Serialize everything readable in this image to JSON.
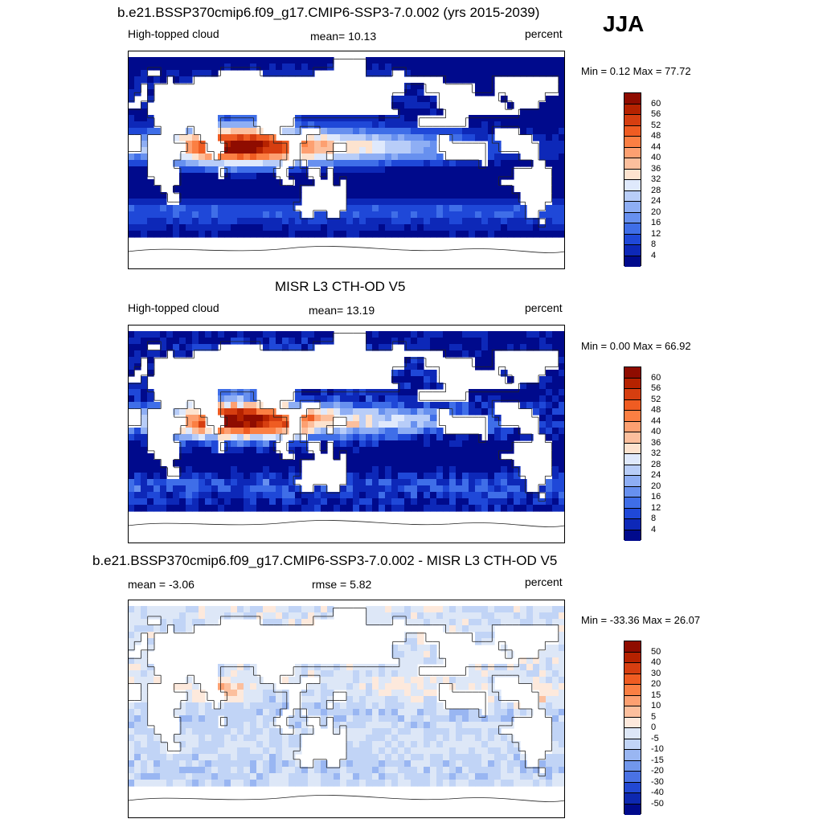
{
  "season": "JJA",
  "land_mask": [
    "..................................................................",
    "...............................#####..............................",
    "...##.........######........########....##........................",
    "......#...######################################.......##########.",
    "..#.######################################...#######...##########.",
    ".##.####################################.......#########.######...",
    "##.#####################################.......##########.####....",
    "...######################################.......###########.......",
    "....##########.....######...................#######...............",
    ".....####.####......###...###..........................####.......",
    "##.####....###........#####....................##......######.....",
    "##.######...###.........##.....##..............#######..######....",
    "...#####.....#..........##....#.................######.....###....",
    "...####................##.#..........................#.......##...",
    "...#####......#.......##...##.#...........................######..",
    "....####...............##...###.#.......................########..",
    ".....##...................#######.........................######..",
    "......##..................#######..........................#####..",
    ".........................########...........................###...",
    "..........................##..##............................##....",
    "..............................................................#...",
    "..................................................................",
    "..................................................................",
    "..................................................................",
    "..................................................................",
    ".................................................................."
  ],
  "panels": [
    {
      "title": "b.e21.BSSP370cmip6.f09_g17.CMIP6-SSP3-7.0.002 (yrs 2015-2039)",
      "left_label": "High-topped cloud",
      "center_label": "mean=  10.13",
      "right_label": "percent",
      "minmax": "Min =   0.12 Max =  77.72",
      "colorbar": {
        "labels": [
          "60",
          "56",
          "52",
          "48",
          "44",
          "40",
          "36",
          "32",
          "28",
          "24",
          "20",
          "16",
          "12",
          "8",
          "4"
        ],
        "colors": [
          "#8f0c00",
          "#b52200",
          "#d63e10",
          "#ef5c22",
          "#fb7f43",
          "#fda071",
          "#fcbf9d",
          "#fde3cf",
          "#dfe9fc",
          "#b8cdf8",
          "#8eaef4",
          "#6790ef",
          "#3f6ee8",
          "#1f48d8",
          "#0d28b8",
          "#000a8c"
        ]
      },
      "map": [
        "##############################################################################",
        "##............###########...##...###..###############........##.......#######",
        "#................######......#.....###..########.....##.........###..##....##",
        "...............#########...........#..#.##########...##....#####.###......###",
        "#...............##.#######........##...############.#.......#######...#.....#",
        "##....#.........#...#.###.##.#...###...############...........##.###.....####",
        "#....##.....##.#....##..........##.#..#...##.####.####...#.....##.#.##.....##",
        "##.....##.####..##..##..#.###..##..######..##..#####...#....#..####....#.....",
        "#.##...####.###..##...###.###.##..#.#...##..##.#.#.........###..#.##.....####",
        "....#..##.##.##.###....###.#..##.#.#.#...#.###...##......#...#.......#...#..#",
        "###..##.#..##.#.....####...#.#.##...###..#..#.####...#.##......#....#..#..##.",
        "#...###.....#.##......#.#....##.##.......#...##..##.#.#####.##.#.##..####...#",
        "...##..........#.#..#####.#..####....####.##.#.##..#..######.#####.##.#.##.##",
        "#..##..##.#....#.#.###..###.#####.##....#####...#..#.......#.#.##...###....##",
        "#.####..###.#.####...#.##..####..#....#.####.#.##.#.#..#....###..#.......#..#",
        "..#...##...#.##.#..#.#..#.##.###.#.....####.#..##.#....#...#.#.#####.##...#..",
        ".#.#...#.#.###..##.#.##.#..#...#.##.#...#..##...#....##....#.###.##.....##...",
        "##...#.#.#.#..##.#...####.#..####.#####...#####.###..##.#..#..#..#.....####.#",
        "###..##.#.##..#####..#..##...##.##....#.##.##.#.###.#...#..#.###.#####...###.",
        "###...#...####...###.##..##..#.#.#.##.#.##...#.####.#.#.#...#..#.#.#..##.##..",
        ".....####.##.#.......#.#.......#.#.....###..##.##...#.#.#.#...#.#.###..#.#..#",
        "#..#...#.#...##....##.#..##...#.#......#.#.#...##......#..#..#.##..#.###.###.",
        "##..###.....#.#..#..#.##.##....##.##..###..###.#.###.#...##....####.#.#....##",
        ".#.####.#.######.##.....#.#..#...##.#.##.#.#.#..#.###.#.###...#.#...#..#.##.#",
        "##.#.#..#.#.##.#.##..#####...#.##....##.##.##.##..#.##.#..##.###..#......#...",
        "#...##.#.#.....##.....#..###...###.###....###.#.#..#.#.#....#.##..#...#.##.#.",
        "#.#.....##..##...##.##..##..#.##.....##..#####..#.....##...#.##..#.##..#.#..#",
        "##.##..#.#.##......####.#.....#.##....#..##.#.#.#..##...###.#.....#.#.##..##.",
        ".#.##..#...#..###.#.#..#..#####.#.#...#.###....###.#.#..##.#..##...#..#.#.#.#",
        "##.....#...##.#.###...##.#..#.#..####.#..##..#.##.#.##...###..#...#.#####.##.",
        ".......#.#......#..##..#..#...##..#...#.##.#.#.#..#...###..#.#...#......#.##.",
        "###.#####.########.#.#.###...#...###.#.#..##.#.#.##..##..#.#....#..######..#."
      ]
    },
    {
      "title": "MISR L3 CTH-OD V5",
      "left_label": "High-topped cloud",
      "center_label": "mean=  13.19",
      "right_label": "percent",
      "minmax": "Min =   0.00 Max =  66.92",
      "colorbar": {
        "labels": [
          "60",
          "56",
          "52",
          "48",
          "44",
          "40",
          "36",
          "32",
          "28",
          "24",
          "20",
          "16",
          "12",
          "8",
          "4"
        ],
        "colors": [
          "#8f0c00",
          "#b52200",
          "#d63e10",
          "#ef5c22",
          "#fb7f43",
          "#fda071",
          "#fcbf9d",
          "#fde3cf",
          "#dfe9fc",
          "#b8cdf8",
          "#8eaef4",
          "#6790ef",
          "#3f6ee8",
          "#1f48d8",
          "#0d28b8",
          "#000a8c"
        ]
      }
    },
    {
      "title": "b.e21.BSSP370cmip6.f09_g17.CMIP6-SSP3-7.0.002 - MISR L3 CTH-OD V5",
      "left_label": "mean =  -3.06",
      "center_label": "rmse =   5.82",
      "right_label": "percent",
      "minmax": "Min = -33.36 Max =  26.07",
      "colorbar": {
        "labels": [
          "50",
          "40",
          "30",
          "20",
          "15",
          "10",
          "5",
          "0",
          "-5",
          "-10",
          "-15",
          "-20",
          "-30",
          "-40",
          "-50"
        ],
        "colors": [
          "#8f0c00",
          "#b52200",
          "#d63e10",
          "#ef5c22",
          "#fb7f43",
          "#fda071",
          "#fcbf9d",
          "#fde9dc",
          "#dde7f7",
          "#c1d4f6",
          "#99b6f2",
          "#7197ec",
          "#4a72e4",
          "#2248d2",
          "#0d28b0",
          "#000a8c"
        ]
      }
    }
  ]
}
